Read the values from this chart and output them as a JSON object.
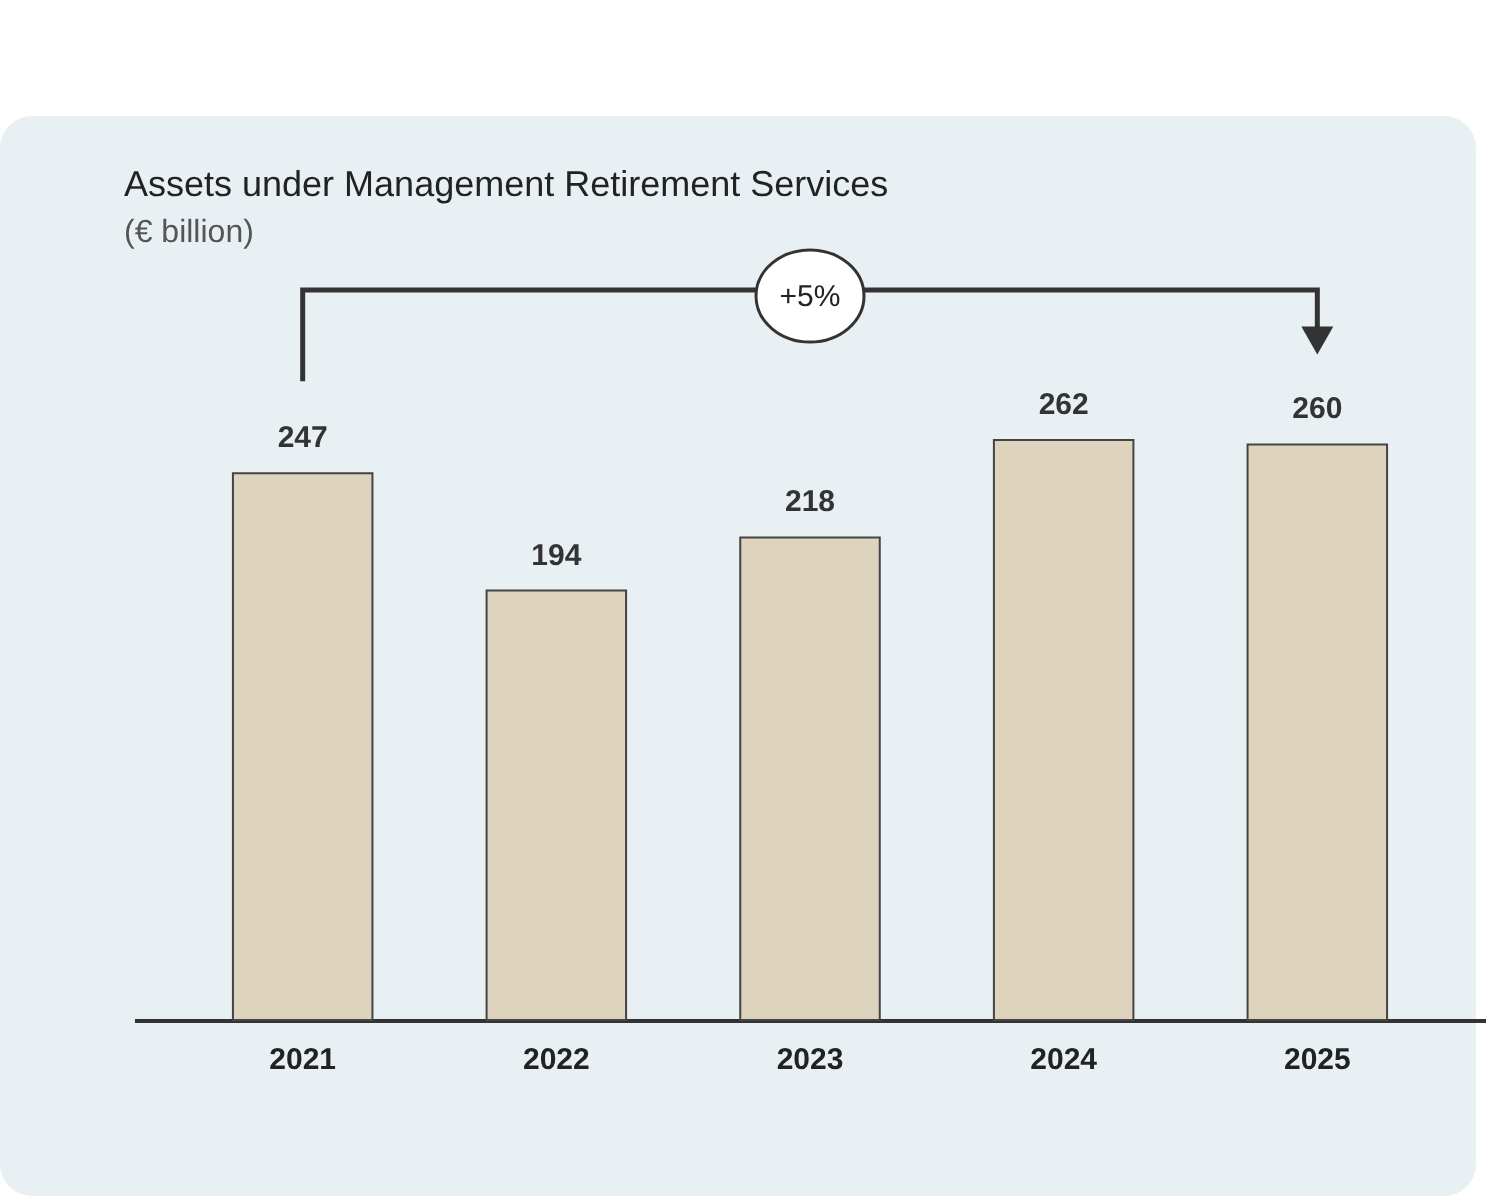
{
  "chart_data": {
    "type": "bar",
    "title": "Assets under Management Retirement Services",
    "subtitle": "(€ billion)",
    "categories": [
      "2021",
      "2022",
      "2023",
      "2024",
      "2025"
    ],
    "values": [
      247,
      194,
      218,
      262,
      260
    ],
    "color": "#ded3bc",
    "data_labels": true,
    "annotations": [
      "+5%"
    ]
  }
}
